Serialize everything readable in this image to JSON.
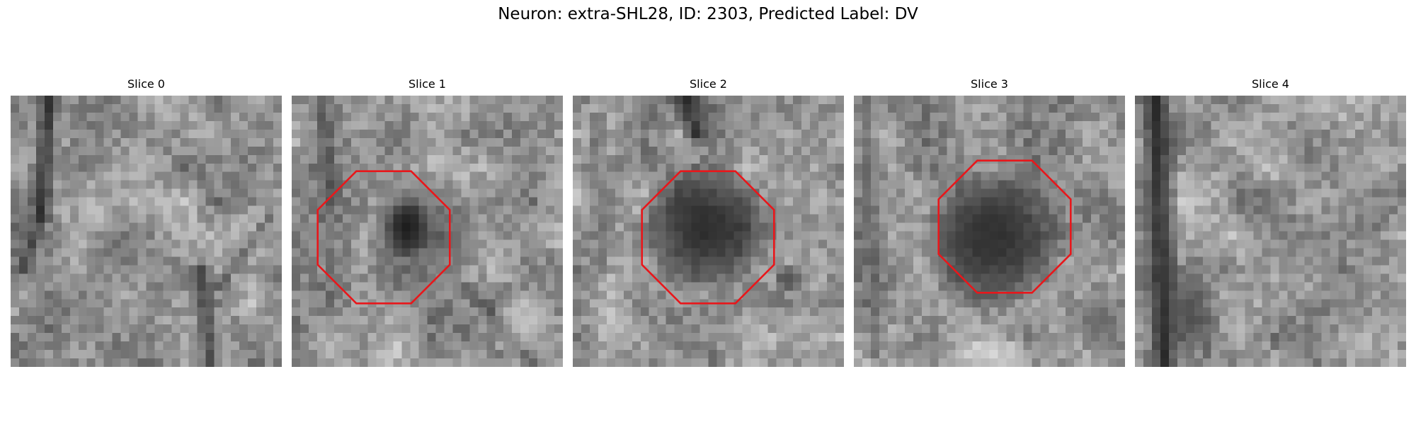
{
  "figure": {
    "title": "Neuron: extra-SHL28, ID: 2303, Predicted Label: DV"
  },
  "slices": [
    {
      "label": "Slice 0",
      "roi": null
    },
    {
      "label": "Slice 1",
      "roi": {
        "shape": "octagon",
        "color": "#e8171b"
      }
    },
    {
      "label": "Slice 2",
      "roi": {
        "shape": "octagon",
        "color": "#e8171b"
      }
    },
    {
      "label": "Slice 3",
      "roi": {
        "shape": "octagon",
        "color": "#e8171b"
      }
    },
    {
      "label": "Slice 4",
      "roi": null
    }
  ]
}
